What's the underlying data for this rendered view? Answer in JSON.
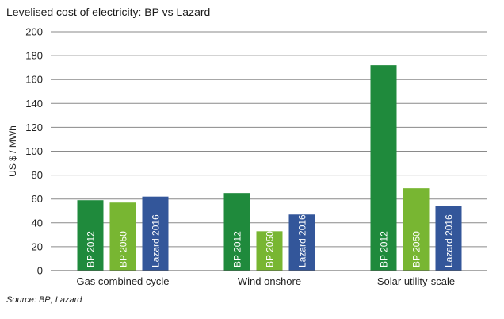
{
  "chart_data": {
    "type": "bar",
    "title": "Levelised cost of electricity: BP vs Lazard",
    "ylabel": "US $ / MWh",
    "xlabel": "",
    "ylim": [
      0,
      200
    ],
    "yticks": [
      0,
      20,
      40,
      60,
      80,
      100,
      120,
      140,
      160,
      180,
      200
    ],
    "grid": true,
    "categories": [
      "Gas combined cycle",
      "Wind onshore",
      "Solar utility-scale"
    ],
    "series": [
      {
        "name": "BP 2012",
        "color": "#1f8a3c",
        "values": [
          59,
          65,
          172
        ]
      },
      {
        "name": "BP 2050",
        "color": "#78b632",
        "values": [
          57,
          33,
          69
        ]
      },
      {
        "name": "Lazard 2016",
        "color": "#33569a",
        "values": [
          62,
          47,
          54
        ]
      }
    ]
  },
  "source": "Source: BP; Lazard"
}
